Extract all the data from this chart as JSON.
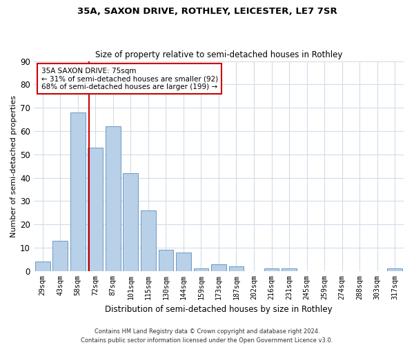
{
  "title1": "35A, SAXON DRIVE, ROTHLEY, LEICESTER, LE7 7SR",
  "title2": "Size of property relative to semi-detached houses in Rothley",
  "xlabel": "Distribution of semi-detached houses by size in Rothley",
  "ylabel": "Number of semi-detached properties",
  "categories": [
    "29sqm",
    "43sqm",
    "58sqm",
    "72sqm",
    "87sqm",
    "101sqm",
    "115sqm",
    "130sqm",
    "144sqm",
    "159sqm",
    "173sqm",
    "187sqm",
    "202sqm",
    "216sqm",
    "231sqm",
    "245sqm",
    "259sqm",
    "274sqm",
    "288sqm",
    "303sqm",
    "317sqm"
  ],
  "values": [
    4,
    13,
    68,
    53,
    62,
    42,
    26,
    9,
    8,
    1,
    3,
    2,
    0,
    1,
    1,
    0,
    0,
    0,
    0,
    0,
    1
  ],
  "bar_color": "#b8d0e8",
  "bar_edge_color": "#5b8db8",
  "vline_x_index": 2.62,
  "ylim": [
    0,
    90
  ],
  "yticks": [
    0,
    10,
    20,
    30,
    40,
    50,
    60,
    70,
    80,
    90
  ],
  "property_label": "35A SAXON DRIVE: 75sqm",
  "smaller_pct": 31,
  "smaller_count": 92,
  "larger_pct": 68,
  "larger_count": 199,
  "annotation_box_color": "#ffffff",
  "annotation_box_edge": "#cc0000",
  "vline_color": "#cc0000",
  "background_color": "#ffffff",
  "grid_color": "#d0dde8",
  "footer": "Contains HM Land Registry data © Crown copyright and database right 2024.\nContains public sector information licensed under the Open Government Licence v3.0."
}
